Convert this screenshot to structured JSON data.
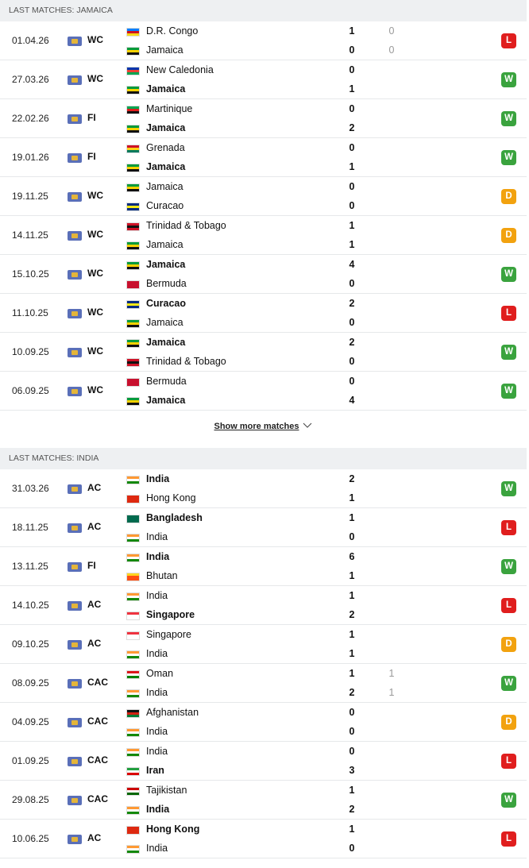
{
  "result_colors": {
    "W": "#3aa33e",
    "L": "#e01e1e",
    "D": "#f2a20f"
  },
  "sections": [
    {
      "header": "LAST MATCHES: JAMAICA",
      "show_more": "Show more matches",
      "matches": [
        {
          "date": "01.04.26",
          "competition": "WC",
          "home": {
            "name": "D.R. Congo",
            "bold": false,
            "flag": [
              "#007fff",
              "#ce1021",
              "#f7d618"
            ]
          },
          "away": {
            "name": "Jamaica",
            "bold": false,
            "flag": [
              "#009b3a",
              "#fed100",
              "#111111"
            ]
          },
          "score": [
            1,
            0
          ],
          "penalties": [
            0,
            0
          ],
          "result": "L"
        },
        {
          "date": "27.03.26",
          "competition": "WC",
          "home": {
            "name": "New Caledonia",
            "bold": false,
            "flag": [
              "#0035ad",
              "#ed4135",
              "#00a651"
            ]
          },
          "away": {
            "name": "Jamaica",
            "bold": true,
            "flag": [
              "#009b3a",
              "#fed100",
              "#111111"
            ]
          },
          "score": [
            0,
            1
          ],
          "result": "W"
        },
        {
          "date": "22.02.26",
          "competition": "FI",
          "home": {
            "name": "Martinique",
            "bold": false,
            "flag": [
              "#00a651",
              "#e11d1d",
              "#111111"
            ]
          },
          "away": {
            "name": "Jamaica",
            "bold": true,
            "flag": [
              "#009b3a",
              "#fed100",
              "#111111"
            ]
          },
          "score": [
            0,
            2
          ],
          "result": "W"
        },
        {
          "date": "19.01.26",
          "competition": "FI",
          "home": {
            "name": "Grenada",
            "bold": false,
            "flag": [
              "#ce1126",
              "#fcd116",
              "#007a5e"
            ]
          },
          "away": {
            "name": "Jamaica",
            "bold": true,
            "flag": [
              "#009b3a",
              "#fed100",
              "#111111"
            ]
          },
          "score": [
            0,
            1
          ],
          "result": "W"
        },
        {
          "date": "19.11.25",
          "competition": "WC",
          "home": {
            "name": "Jamaica",
            "bold": false,
            "flag": [
              "#009b3a",
              "#fed100",
              "#111111"
            ]
          },
          "away": {
            "name": "Curacao",
            "bold": false,
            "flag": [
              "#002b7f",
              "#f9e814",
              "#002b7f"
            ]
          },
          "score": [
            0,
            0
          ],
          "result": "D"
        },
        {
          "date": "14.11.25",
          "competition": "WC",
          "home": {
            "name": "Trinidad & Tobago",
            "bold": false,
            "flag": [
              "#ce1126",
              "#111111",
              "#ce1126"
            ]
          },
          "away": {
            "name": "Jamaica",
            "bold": false,
            "flag": [
              "#009b3a",
              "#fed100",
              "#111111"
            ]
          },
          "score": [
            1,
            1
          ],
          "result": "D"
        },
        {
          "date": "15.10.25",
          "competition": "WC",
          "home": {
            "name": "Jamaica",
            "bold": true,
            "flag": [
              "#009b3a",
              "#fed100",
              "#111111"
            ]
          },
          "away": {
            "name": "Bermuda",
            "bold": false,
            "flag": [
              "#c8102e",
              "#c8102e",
              "#c8102e"
            ]
          },
          "score": [
            4,
            0
          ],
          "result": "W"
        },
        {
          "date": "11.10.25",
          "competition": "WC",
          "home": {
            "name": "Curacao",
            "bold": true,
            "flag": [
              "#002b7f",
              "#f9e814",
              "#002b7f"
            ]
          },
          "away": {
            "name": "Jamaica",
            "bold": false,
            "flag": [
              "#009b3a",
              "#fed100",
              "#111111"
            ]
          },
          "score": [
            2,
            0
          ],
          "result": "L"
        },
        {
          "date": "10.09.25",
          "competition": "WC",
          "home": {
            "name": "Jamaica",
            "bold": true,
            "flag": [
              "#009b3a",
              "#fed100",
              "#111111"
            ]
          },
          "away": {
            "name": "Trinidad & Tobago",
            "bold": false,
            "flag": [
              "#ce1126",
              "#111111",
              "#ce1126"
            ]
          },
          "score": [
            2,
            0
          ],
          "result": "W"
        },
        {
          "date": "06.09.25",
          "competition": "WC",
          "home": {
            "name": "Bermuda",
            "bold": false,
            "flag": [
              "#c8102e",
              "#c8102e",
              "#c8102e"
            ]
          },
          "away": {
            "name": "Jamaica",
            "bold": true,
            "flag": [
              "#009b3a",
              "#fed100",
              "#111111"
            ]
          },
          "score": [
            0,
            4
          ],
          "result": "W"
        }
      ]
    },
    {
      "header": "LAST MATCHES: INDIA",
      "matches": [
        {
          "date": "31.03.26",
          "competition": "AC",
          "home": {
            "name": "India",
            "bold": true,
            "flag": [
              "#ff9933",
              "#ffffff",
              "#138808"
            ]
          },
          "away": {
            "name": "Hong Kong",
            "bold": false,
            "flag": [
              "#de2910",
              "#de2910",
              "#de2910"
            ]
          },
          "score": [
            2,
            1
          ],
          "result": "W"
        },
        {
          "date": "18.11.25",
          "competition": "AC",
          "home": {
            "name": "Bangladesh",
            "bold": true,
            "flag": [
              "#006a4e",
              "#006a4e",
              "#006a4e"
            ]
          },
          "away": {
            "name": "India",
            "bold": false,
            "flag": [
              "#ff9933",
              "#ffffff",
              "#138808"
            ]
          },
          "score": [
            1,
            0
          ],
          "result": "L"
        },
        {
          "date": "13.11.25",
          "competition": "FI",
          "home": {
            "name": "India",
            "bold": true,
            "flag": [
              "#ff9933",
              "#ffffff",
              "#138808"
            ]
          },
          "away": {
            "name": "Bhutan",
            "bold": false,
            "flag": [
              "#ffd520",
              "#ff4e12",
              "#ff4e12"
            ]
          },
          "score": [
            6,
            1
          ],
          "result": "W"
        },
        {
          "date": "14.10.25",
          "competition": "AC",
          "home": {
            "name": "India",
            "bold": false,
            "flag": [
              "#ff9933",
              "#ffffff",
              "#138808"
            ]
          },
          "away": {
            "name": "Singapore",
            "bold": true,
            "flag": [
              "#ef3340",
              "#ffffff",
              "#ffffff"
            ]
          },
          "score": [
            1,
            2
          ],
          "result": "L"
        },
        {
          "date": "09.10.25",
          "competition": "AC",
          "home": {
            "name": "Singapore",
            "bold": false,
            "flag": [
              "#ef3340",
              "#ffffff",
              "#ffffff"
            ]
          },
          "away": {
            "name": "India",
            "bold": false,
            "flag": [
              "#ff9933",
              "#ffffff",
              "#138808"
            ]
          },
          "score": [
            1,
            1
          ],
          "result": "D"
        },
        {
          "date": "08.09.25",
          "competition": "CAC",
          "home": {
            "name": "Oman",
            "bold": false,
            "flag": [
              "#db161b",
              "#ffffff",
              "#008000"
            ]
          },
          "away": {
            "name": "India",
            "bold": false,
            "flag": [
              "#ff9933",
              "#ffffff",
              "#138808"
            ]
          },
          "score": [
            1,
            2
          ],
          "penalties": [
            1,
            1
          ],
          "result": "W"
        },
        {
          "date": "04.09.25",
          "competition": "CAC",
          "home": {
            "name": "Afghanistan",
            "bold": false,
            "flag": [
              "#111111",
              "#d32011",
              "#007a36"
            ]
          },
          "away": {
            "name": "India",
            "bold": false,
            "flag": [
              "#ff9933",
              "#ffffff",
              "#138808"
            ]
          },
          "score": [
            0,
            0
          ],
          "result": "D"
        },
        {
          "date": "01.09.25",
          "competition": "CAC",
          "home": {
            "name": "India",
            "bold": false,
            "flag": [
              "#ff9933",
              "#ffffff",
              "#138808"
            ]
          },
          "away": {
            "name": "Iran",
            "bold": true,
            "flag": [
              "#239f40",
              "#ffffff",
              "#da0000"
            ]
          },
          "score": [
            0,
            3
          ],
          "result": "L"
        },
        {
          "date": "29.08.25",
          "competition": "CAC",
          "home": {
            "name": "Tajikistan",
            "bold": false,
            "flag": [
              "#cc0000",
              "#ffffff",
              "#006600"
            ]
          },
          "away": {
            "name": "India",
            "bold": true,
            "flag": [
              "#ff9933",
              "#ffffff",
              "#138808"
            ]
          },
          "score": [
            1,
            2
          ],
          "result": "W"
        },
        {
          "date": "10.06.25",
          "competition": "AC",
          "home": {
            "name": "Hong Kong",
            "bold": true,
            "flag": [
              "#de2910",
              "#de2910",
              "#de2910"
            ]
          },
          "away": {
            "name": "India",
            "bold": false,
            "flag": [
              "#ff9933",
              "#ffffff",
              "#138808"
            ]
          },
          "score": [
            1,
            0
          ],
          "result": "L"
        }
      ]
    }
  ]
}
